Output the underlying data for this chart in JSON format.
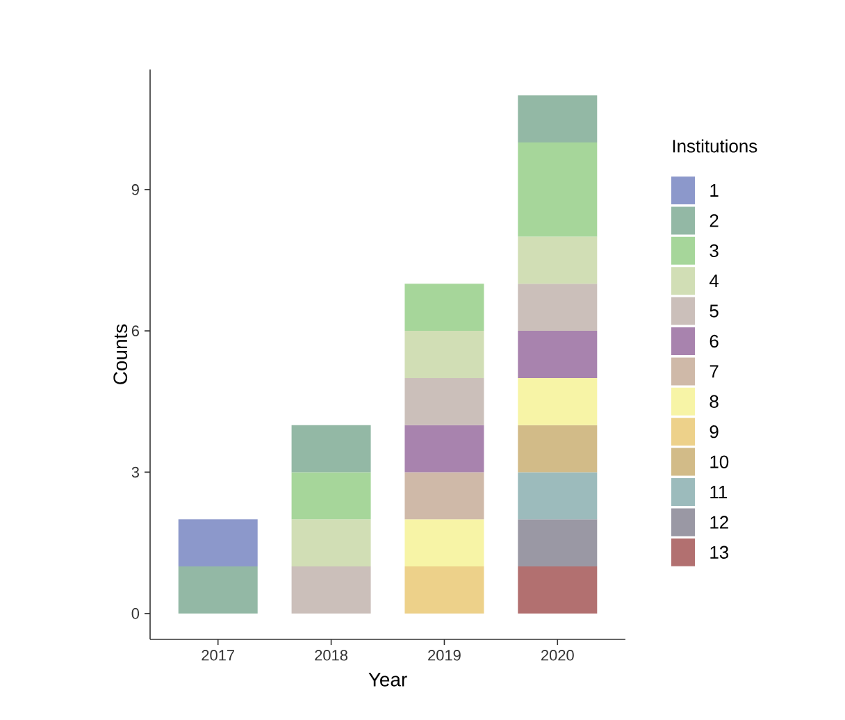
{
  "chart_data": {
    "type": "bar",
    "stacked": true,
    "xlabel": "Year",
    "ylabel": "Counts",
    "legend_title": "Institutions",
    "legend": "right",
    "categories": [
      "2017",
      "2018",
      "2019",
      "2020"
    ],
    "ylim": [
      -0.55,
      11.55
    ],
    "yticks": [
      0,
      3,
      6,
      9
    ],
    "series": [
      {
        "name": "13",
        "color": "#b27070",
        "values": [
          0,
          0,
          0,
          1
        ]
      },
      {
        "name": "12",
        "color": "#9a98a4",
        "values": [
          0,
          0,
          0,
          1
        ]
      },
      {
        "name": "11",
        "color": "#9cbbbc",
        "values": [
          0,
          0,
          0,
          1
        ]
      },
      {
        "name": "10",
        "color": "#d2bb88",
        "values": [
          0,
          0,
          0,
          1
        ]
      },
      {
        "name": "9",
        "color": "#edd18a",
        "values": [
          0,
          0,
          1,
          0
        ]
      },
      {
        "name": "8",
        "color": "#f7f4a6",
        "values": [
          0,
          0,
          1,
          1
        ]
      },
      {
        "name": "7",
        "color": "#cfb9a8",
        "values": [
          0,
          0,
          1,
          0
        ]
      },
      {
        "name": "6",
        "color": "#a883ae",
        "values": [
          0,
          0,
          1,
          1
        ]
      },
      {
        "name": "5",
        "color": "#cbbfba",
        "values": [
          0,
          1,
          1,
          1
        ]
      },
      {
        "name": "4",
        "color": "#d1deb5",
        "values": [
          0,
          1,
          1,
          1
        ]
      },
      {
        "name": "3",
        "color": "#a6d69a",
        "values": [
          0,
          1,
          1,
          2
        ]
      },
      {
        "name": "2",
        "color": "#93b8a5",
        "values": [
          1,
          1,
          0,
          1
        ]
      },
      {
        "name": "1",
        "color": "#8c98cb",
        "values": [
          1,
          0,
          0,
          0
        ]
      }
    ]
  }
}
